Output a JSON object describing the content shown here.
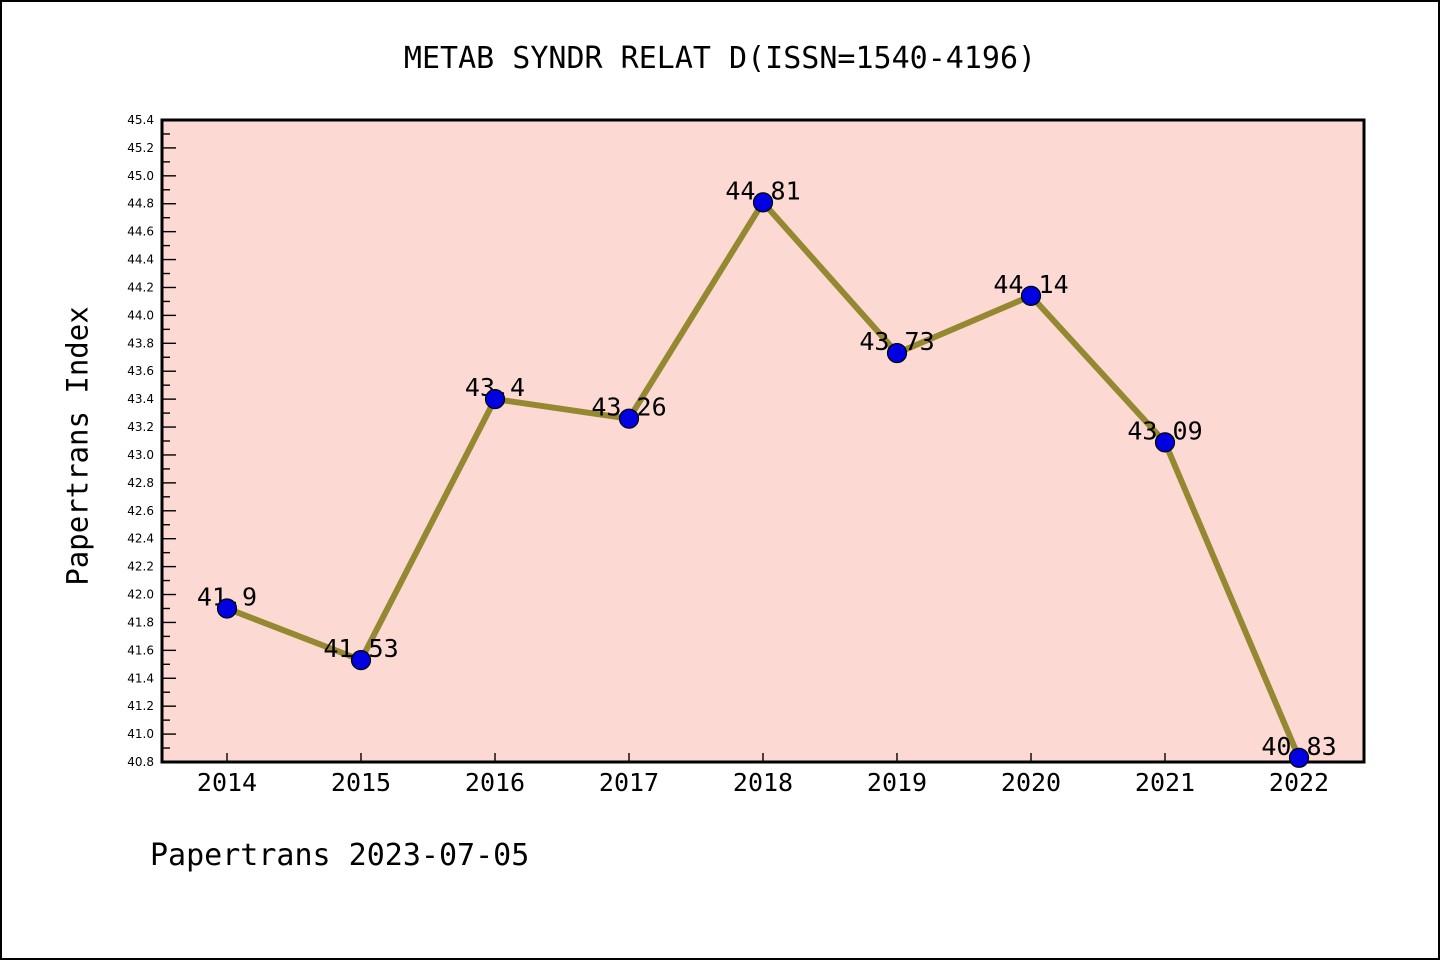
{
  "chart_data": {
    "type": "line",
    "title": "METAB SYNDR RELAT D(ISSN=1540-4196)",
    "xlabel": "",
    "ylabel": "Papertrans Index",
    "footer": "Papertrans 2023-07-05",
    "categories": [
      "2014",
      "2015",
      "2016",
      "2017",
      "2018",
      "2019",
      "2020",
      "2021",
      "2022"
    ],
    "values": [
      41.9,
      41.53,
      43.4,
      43.26,
      44.81,
      43.73,
      44.14,
      43.09,
      40.83
    ],
    "ylim": [
      40.8,
      45.4
    ],
    "ytick_major_step": 0.2,
    "ytick_minor_step": 0.1,
    "grid": false,
    "legend": false,
    "marker": "circle",
    "colors": {
      "plot_bg": "#fcd9d3",
      "line": "#948831",
      "marker_fill": "#0000e0",
      "marker_edge": "#000000",
      "spine": "#000000",
      "text": "#000000"
    }
  }
}
